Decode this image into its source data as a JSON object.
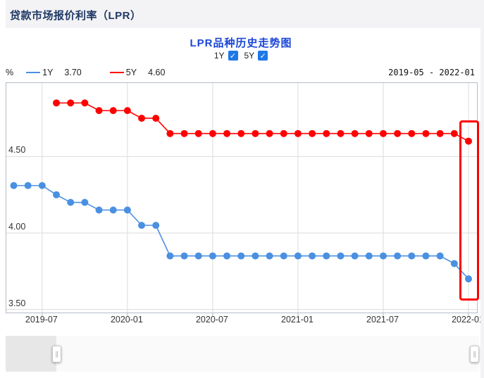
{
  "page": {
    "title": "贷款市场报价利率（LPR）"
  },
  "chart": {
    "title": "LPR品种历史走势图",
    "check_glyph": "✓",
    "toggles": [
      {
        "label": "1Y",
        "checked": true
      },
      {
        "label": "5Y",
        "checked": true
      }
    ],
    "unit": "%",
    "legend": [
      {
        "name": "1Y",
        "value": "3.70"
      },
      {
        "name": "5Y",
        "value": "4.60"
      }
    ],
    "range_label": "2019-05 - 2022-01",
    "handle_glyph": "∥"
  },
  "chart_data": {
    "type": "line",
    "title": "LPR品种历史走势图",
    "ylabel": "%",
    "x": [
      "2019-05",
      "2019-06",
      "2019-07",
      "2019-08",
      "2019-09",
      "2019-10",
      "2019-11",
      "2019-12",
      "2020-01",
      "2020-02",
      "2020-03",
      "2020-04",
      "2020-05",
      "2020-06",
      "2020-07",
      "2020-08",
      "2020-09",
      "2020-10",
      "2020-11",
      "2020-12",
      "2021-01",
      "2021-02",
      "2021-03",
      "2021-04",
      "2021-05",
      "2021-06",
      "2021-07",
      "2021-08",
      "2021-09",
      "2021-10",
      "2021-11",
      "2021-12",
      "2022-01"
    ],
    "x_tick_labels": [
      "2019-07",
      "2020-01",
      "2020-07",
      "2021-01",
      "2021-07",
      "2022-01"
    ],
    "y_ticks": [
      "4.50",
      "4.00",
      "3.50"
    ],
    "ylim": [
      3.48,
      4.98
    ],
    "grid": true,
    "series": [
      {
        "name": "1Y",
        "color": "#4a90e2",
        "start_index": 0,
        "values": [
          4.31,
          4.31,
          4.31,
          4.25,
          4.2,
          4.2,
          4.15,
          4.15,
          4.15,
          4.05,
          4.05,
          3.85,
          3.85,
          3.85,
          3.85,
          3.85,
          3.85,
          3.85,
          3.85,
          3.85,
          3.85,
          3.85,
          3.85,
          3.85,
          3.85,
          3.85,
          3.85,
          3.85,
          3.85,
          3.85,
          3.85,
          3.8,
          3.7
        ]
      },
      {
        "name": "5Y",
        "color": "#ff0000",
        "start_index": 3,
        "values": [
          4.85,
          4.85,
          4.85,
          4.8,
          4.8,
          4.8,
          4.75,
          4.75,
          4.65,
          4.65,
          4.65,
          4.65,
          4.65,
          4.65,
          4.65,
          4.65,
          4.65,
          4.65,
          4.65,
          4.65,
          4.65,
          4.65,
          4.65,
          4.65,
          4.65,
          4.65,
          4.65,
          4.65,
          4.65,
          4.6
        ]
      }
    ],
    "annotation": {
      "type": "highlight-box",
      "color": "#ff0000",
      "covers": "2022-01"
    },
    "grid_color": "#dcdcdc",
    "border_color": "#b4bcc9"
  }
}
